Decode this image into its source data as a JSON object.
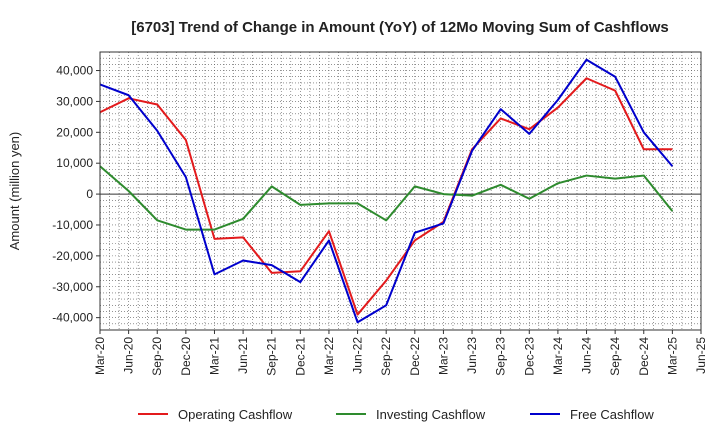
{
  "chart_data": {
    "type": "line",
    "title": "[6703]  Trend of Change in Amount (YoY) of 12Mo Moving Sum of Cashflows",
    "xlabel": "",
    "ylabel": "Amount (million yen)",
    "ylim": [
      -44000,
      46000
    ],
    "yticks": [
      40000,
      30000,
      20000,
      10000,
      0,
      -10000,
      -20000,
      -30000,
      -40000
    ],
    "ytick_labels": [
      "40,000",
      "30,000",
      "20,000",
      "10,000",
      "0",
      "-10,000",
      "-20,000",
      "-30,000",
      "-40,000"
    ],
    "categories": [
      "Mar-20",
      "Jun-20",
      "Sep-20",
      "Dec-20",
      "Mar-21",
      "Jun-21",
      "Sep-21",
      "Dec-21",
      "Mar-22",
      "Jun-22",
      "Sep-22",
      "Dec-22",
      "Mar-23",
      "Jun-23",
      "Sep-23",
      "Dec-23",
      "Mar-24",
      "Jun-24",
      "Sep-24",
      "Dec-24",
      "Mar-25",
      "Jun-25"
    ],
    "grid": true,
    "legend_position": "bottom",
    "series": [
      {
        "name": "Operating Cashflow",
        "color": "#e31a1c",
        "values": [
          26500,
          31000,
          29000,
          17500,
          -14500,
          -14000,
          -25500,
          -25000,
          -12000,
          -39000,
          -28000,
          -15000,
          -9000,
          14500,
          24500,
          21000,
          28000,
          37500,
          33500,
          14500,
          14500,
          null
        ]
      },
      {
        "name": "Investing Cashflow",
        "color": "#2e8b2e",
        "values": [
          9000,
          1000,
          -8500,
          -11500,
          -11500,
          -8000,
          2500,
          -3500,
          -3000,
          -3000,
          -8500,
          2500,
          0,
          -500,
          3000,
          -1500,
          3500,
          6000,
          5000,
          6000,
          -5500,
          null
        ]
      },
      {
        "name": "Free Cashflow",
        "color": "#0000cc",
        "values": [
          35500,
          32000,
          20500,
          5500,
          -26000,
          -21500,
          -23000,
          -28500,
          -15000,
          -41500,
          -36000,
          -12500,
          -9500,
          14000,
          27500,
          19500,
          30500,
          43500,
          38000,
          20000,
          9000,
          null
        ]
      }
    ]
  }
}
